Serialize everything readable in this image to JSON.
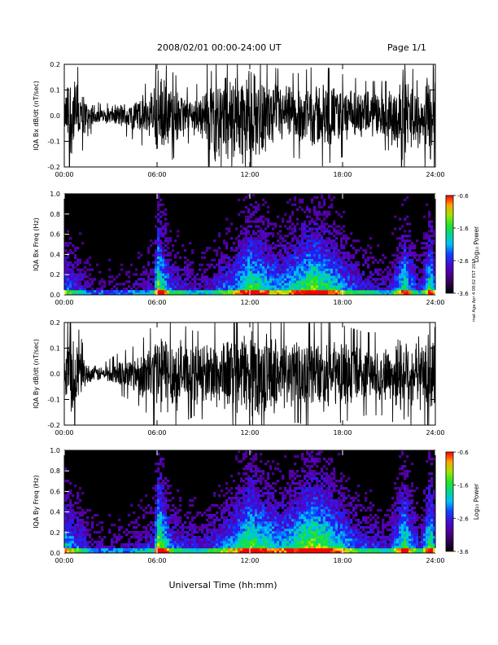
{
  "header": {
    "title": "2008/02/01  00:00-24:00 UT",
    "page": "Page 1/1"
  },
  "credit": "mat Aga Apr 4 09:02 EST 2019",
  "xlabel": "Universal Time (hh:mm)",
  "chart_data": [
    {
      "type": "line",
      "name": "bx",
      "ylabel": "IQA Bx dB/dt (nT/sec)",
      "x_ticks": [
        "00:00",
        "06:00",
        "12:00",
        "18:00",
        "24:00"
      ],
      "y_ticks": [
        "0.2",
        "0.1",
        "0.0",
        "-0.1",
        "-0.2"
      ],
      "xlim": [
        0,
        24
      ],
      "ylim": [
        -0.2,
        0.2
      ],
      "x_unit": "hours UT",
      "envelope": [
        {
          "t": 0.0,
          "amp": 0.05
        },
        {
          "t": 0.3,
          "amp": 0.2
        },
        {
          "t": 0.8,
          "amp": 0.15
        },
        {
          "t": 1.5,
          "amp": 0.06
        },
        {
          "t": 2.5,
          "amp": 0.03
        },
        {
          "t": 3.5,
          "amp": 0.05
        },
        {
          "t": 4.5,
          "amp": 0.07
        },
        {
          "t": 5.5,
          "amp": 0.1
        },
        {
          "t": 6.0,
          "amp": 0.2
        },
        {
          "t": 6.5,
          "amp": 0.15
        },
        {
          "t": 8.0,
          "amp": 0.08
        },
        {
          "t": 9.0,
          "amp": 0.1
        },
        {
          "t": 9.5,
          "amp": 0.2
        },
        {
          "t": 12.0,
          "amp": 0.2
        },
        {
          "t": 13.5,
          "amp": 0.14
        },
        {
          "t": 15.0,
          "amp": 0.12
        },
        {
          "t": 16.5,
          "amp": 0.15
        },
        {
          "t": 18.0,
          "amp": 0.12
        },
        {
          "t": 19.5,
          "amp": 0.1
        },
        {
          "t": 21.0,
          "amp": 0.1
        },
        {
          "t": 22.0,
          "amp": 0.2
        },
        {
          "t": 23.0,
          "amp": 0.08
        },
        {
          "t": 23.5,
          "amp": 0.2
        },
        {
          "t": 24.0,
          "amp": 0.2
        }
      ]
    },
    {
      "type": "heatmap",
      "name": "bx-spec",
      "ylabel": "IQA Bx Freq (Hz)",
      "x_ticks": [
        "00:00",
        "06:00",
        "12:00",
        "18:00",
        "24:00"
      ],
      "y_ticks": [
        "1.0",
        "0.8",
        "0.6",
        "0.4",
        "0.2",
        "0.0"
      ],
      "xlim": [
        0,
        24
      ],
      "ylim": [
        0,
        1.0
      ],
      "colorbar": {
        "label": "Log₁₀ Power",
        "ticks": [
          "-0.6",
          "-1.6",
          "-2.6",
          "-3.6"
        ],
        "range": [
          -3.6,
          -0.6
        ]
      },
      "activity": [
        {
          "t": 0.0,
          "level": 0.55
        },
        {
          "t": 0.5,
          "level": 0.45
        },
        {
          "t": 2.0,
          "level": 0.2
        },
        {
          "t": 4.0,
          "level": 0.2
        },
        {
          "t": 5.8,
          "level": 0.35
        },
        {
          "t": 6.05,
          "level": 0.9
        },
        {
          "t": 7.0,
          "level": 0.4
        },
        {
          "t": 9.0,
          "level": 0.3
        },
        {
          "t": 11.0,
          "level": 0.55
        },
        {
          "t": 12.0,
          "level": 0.8
        },
        {
          "t": 14.0,
          "level": 0.55
        },
        {
          "t": 16.0,
          "level": 0.85
        },
        {
          "t": 17.0,
          "level": 0.75
        },
        {
          "t": 19.0,
          "level": 0.4
        },
        {
          "t": 21.0,
          "level": 0.3
        },
        {
          "t": 22.0,
          "level": 0.75
        },
        {
          "t": 23.0,
          "level": 0.3
        },
        {
          "t": 23.7,
          "level": 0.8
        },
        {
          "t": 24.0,
          "level": 0.5
        }
      ]
    },
    {
      "type": "line",
      "name": "by",
      "ylabel": "IQA By dB/dt (nT/sec)",
      "x_ticks": [
        "00:00",
        "06:00",
        "12:00",
        "18:00",
        "24:00"
      ],
      "y_ticks": [
        "0.2",
        "0.1",
        "0.0",
        "-0.1",
        "-0.2"
      ],
      "xlim": [
        0,
        24
      ],
      "ylim": [
        -0.2,
        0.2
      ],
      "x_unit": "hours UT",
      "envelope": [
        {
          "t": 0.0,
          "amp": 0.05
        },
        {
          "t": 0.3,
          "amp": 0.2
        },
        {
          "t": 0.8,
          "amp": 0.15
        },
        {
          "t": 1.5,
          "amp": 0.04
        },
        {
          "t": 2.5,
          "amp": 0.03
        },
        {
          "t": 3.5,
          "amp": 0.06
        },
        {
          "t": 4.5,
          "amp": 0.08
        },
        {
          "t": 5.5,
          "amp": 0.12
        },
        {
          "t": 6.0,
          "amp": 0.2
        },
        {
          "t": 7.0,
          "amp": 0.16
        },
        {
          "t": 8.5,
          "amp": 0.12
        },
        {
          "t": 10.0,
          "amp": 0.16
        },
        {
          "t": 12.0,
          "amp": 0.18
        },
        {
          "t": 13.5,
          "amp": 0.17
        },
        {
          "t": 15.0,
          "amp": 0.14
        },
        {
          "t": 16.5,
          "amp": 0.16
        },
        {
          "t": 18.0,
          "amp": 0.14
        },
        {
          "t": 19.5,
          "amp": 0.12
        },
        {
          "t": 21.0,
          "amp": 0.12
        },
        {
          "t": 22.0,
          "amp": 0.2
        },
        {
          "t": 23.0,
          "amp": 0.1
        },
        {
          "t": 23.5,
          "amp": 0.2
        },
        {
          "t": 24.0,
          "amp": 0.2
        }
      ]
    },
    {
      "type": "heatmap",
      "name": "by-spec",
      "ylabel": "IQA By Freq (Hz)",
      "x_ticks": [
        "00:00",
        "06:00",
        "12:00",
        "18:00",
        "24:00"
      ],
      "y_ticks": [
        "1.0",
        "0.8",
        "0.6",
        "0.4",
        "0.2",
        "0.0"
      ],
      "xlim": [
        0,
        24
      ],
      "ylim": [
        0,
        1.0
      ],
      "colorbar": {
        "label": "Log₁₀ Power",
        "ticks": [
          "-0.6",
          "-1.6",
          "-2.6",
          "-3.6"
        ],
        "range": [
          -3.6,
          -0.6
        ]
      },
      "activity": [
        {
          "t": 0.0,
          "level": 0.65
        },
        {
          "t": 0.5,
          "level": 0.55
        },
        {
          "t": 2.0,
          "level": 0.25
        },
        {
          "t": 4.0,
          "level": 0.25
        },
        {
          "t": 5.8,
          "level": 0.4
        },
        {
          "t": 6.05,
          "level": 0.95
        },
        {
          "t": 7.0,
          "level": 0.45
        },
        {
          "t": 9.0,
          "level": 0.35
        },
        {
          "t": 11.0,
          "level": 0.6
        },
        {
          "t": 12.0,
          "level": 0.85
        },
        {
          "t": 14.0,
          "level": 0.6
        },
        {
          "t": 16.0,
          "level": 0.9
        },
        {
          "t": 17.0,
          "level": 0.8
        },
        {
          "t": 19.0,
          "level": 0.45
        },
        {
          "t": 21.0,
          "level": 0.35
        },
        {
          "t": 22.0,
          "level": 0.8
        },
        {
          "t": 23.0,
          "level": 0.35
        },
        {
          "t": 23.7,
          "level": 0.85
        },
        {
          "t": 24.0,
          "level": 0.55
        }
      ]
    }
  ]
}
